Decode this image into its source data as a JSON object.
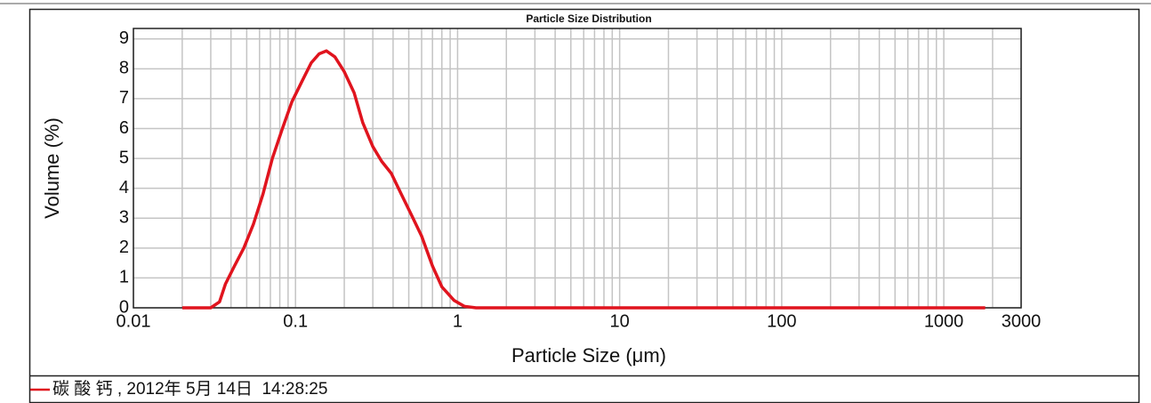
{
  "chart_data": {
    "type": "line",
    "title": "Particle Size Distribution",
    "xlabel": "Particle Size (μm)",
    "ylabel": "Volume (%)",
    "xscale": "log",
    "xlim": [
      0.01,
      3000
    ],
    "ylim": [
      0,
      9.35
    ],
    "xticks": [
      0.01,
      0.1,
      1,
      10,
      100,
      1000,
      3000
    ],
    "x_minor_grid": [
      0.02,
      0.03,
      0.04,
      0.05,
      0.06,
      0.07,
      0.08,
      0.09,
      0.2,
      0.3,
      0.4,
      0.5,
      0.6,
      0.7,
      0.8,
      0.9,
      2,
      3,
      4,
      5,
      6,
      7,
      8,
      9,
      20,
      30,
      40,
      50,
      60,
      70,
      80,
      90,
      200,
      300,
      400,
      500,
      600,
      700,
      800,
      900,
      2000
    ],
    "yticks": [
      0,
      1,
      2,
      3,
      4,
      5,
      6,
      7,
      8,
      9
    ],
    "grid": true,
    "series": [
      {
        "name": "碳 酸 钙 , 2012年 5月 14日  14:28:25",
        "color": "#e0141e",
        "x": [
          0.02,
          0.03,
          0.034,
          0.037,
          0.042,
          0.048,
          0.055,
          0.063,
          0.072,
          0.083,
          0.095,
          0.11,
          0.125,
          0.14,
          0.155,
          0.175,
          0.2,
          0.23,
          0.26,
          0.3,
          0.34,
          0.39,
          0.45,
          0.52,
          0.6,
          0.7,
          0.8,
          0.95,
          1.1,
          1.3,
          10,
          100,
          1000,
          1800
        ],
        "values": [
          0,
          0,
          0.2,
          0.8,
          1.4,
          2.0,
          2.8,
          3.8,
          5.0,
          6.0,
          6.9,
          7.6,
          8.2,
          8.5,
          8.6,
          8.4,
          7.9,
          7.2,
          6.2,
          5.4,
          4.9,
          4.5,
          3.8,
          3.1,
          2.4,
          1.4,
          0.7,
          0.25,
          0.05,
          0,
          0,
          0,
          0,
          0
        ]
      }
    ]
  }
}
